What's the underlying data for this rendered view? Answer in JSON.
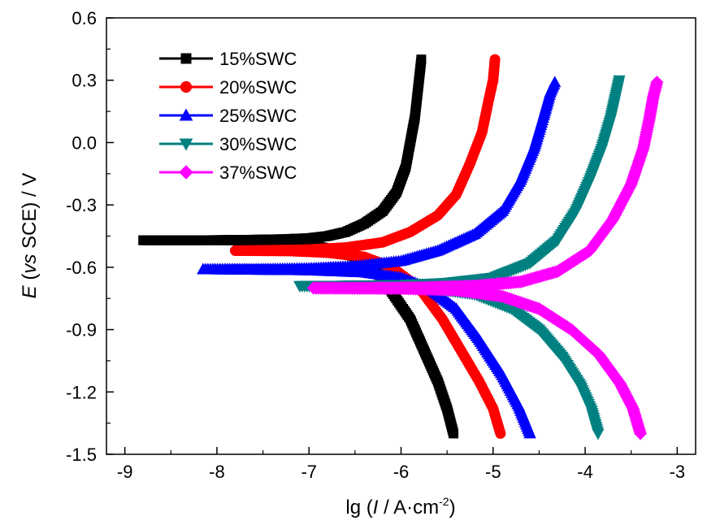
{
  "chart_data": {
    "type": "line",
    "title": "",
    "xlabel_parts": {
      "pre": "lg (",
      "italic": "I",
      "mid": " / A·cm",
      "sup": "-2",
      "post": ")"
    },
    "ylabel_parts": {
      "italic1": "E",
      "a": " (",
      "italic2": "vs",
      "b": " SCE) / V"
    },
    "xlim": [
      -9.2,
      -2.8
    ],
    "ylim": [
      -1.5,
      0.6
    ],
    "xticks": [
      -9,
      -8,
      -7,
      -6,
      -5,
      -4,
      -3
    ],
    "xtick_labels": [
      "-9",
      "-8",
      "-7",
      "-6",
      "-5",
      "-4",
      "-3"
    ],
    "yticks": [
      -1.5,
      -1.2,
      -0.9,
      -0.6,
      -0.3,
      0.0,
      0.3,
      0.6
    ],
    "ytick_labels": [
      "-1.5",
      "-1.2",
      "-0.9",
      "-0.6",
      "-0.3",
      "0.0",
      "0.3",
      "0.6"
    ],
    "grid": false,
    "legend_position": "top-left",
    "series": [
      {
        "name": "15%SWC",
        "color": "#000000",
        "marker": "square",
        "anodic": [
          [
            -8.8,
            -0.47
          ],
          [
            -8.2,
            -0.47
          ],
          [
            -7.7,
            -0.468
          ],
          [
            -7.3,
            -0.465
          ],
          [
            -7.0,
            -0.46
          ],
          [
            -6.8,
            -0.45
          ],
          [
            -6.6,
            -0.43
          ],
          [
            -6.4,
            -0.39
          ],
          [
            -6.2,
            -0.33
          ],
          [
            -6.05,
            -0.24
          ],
          [
            -5.95,
            -0.12
          ],
          [
            -5.9,
            0.0
          ],
          [
            -5.85,
            0.12
          ],
          [
            -5.82,
            0.24
          ],
          [
            -5.8,
            0.32
          ],
          [
            -5.78,
            0.4
          ]
        ],
        "cathodic": [
          [
            -8.8,
            -0.47
          ],
          [
            -8.0,
            -0.47
          ],
          [
            -7.5,
            -0.472
          ],
          [
            -7.0,
            -0.49
          ],
          [
            -6.6,
            -0.53
          ],
          [
            -6.3,
            -0.6
          ],
          [
            -6.1,
            -0.72
          ],
          [
            -5.9,
            -0.85
          ],
          [
            -5.75,
            -1.0
          ],
          [
            -5.6,
            -1.15
          ],
          [
            -5.5,
            -1.28
          ],
          [
            -5.43,
            -1.4
          ]
        ]
      },
      {
        "name": "20%SWC",
        "color": "#ff0000",
        "marker": "circle",
        "anodic": [
          [
            -7.8,
            -0.52
          ],
          [
            -7.4,
            -0.518
          ],
          [
            -7.0,
            -0.515
          ],
          [
            -6.6,
            -0.505
          ],
          [
            -6.2,
            -0.48
          ],
          [
            -5.9,
            -0.43
          ],
          [
            -5.6,
            -0.35
          ],
          [
            -5.4,
            -0.25
          ],
          [
            -5.25,
            -0.1
          ],
          [
            -5.12,
            0.05
          ],
          [
            -5.05,
            0.2
          ],
          [
            -5.0,
            0.3
          ],
          [
            -4.98,
            0.4
          ]
        ],
        "cathodic": [
          [
            -7.8,
            -0.52
          ],
          [
            -7.2,
            -0.522
          ],
          [
            -6.8,
            -0.53
          ],
          [
            -6.4,
            -0.55
          ],
          [
            -6.1,
            -0.6
          ],
          [
            -5.8,
            -0.7
          ],
          [
            -5.55,
            -0.85
          ],
          [
            -5.35,
            -1.0
          ],
          [
            -5.15,
            -1.15
          ],
          [
            -5.0,
            -1.28
          ],
          [
            -4.92,
            -1.4
          ]
        ]
      },
      {
        "name": "25%SWC",
        "color": "#0000ff",
        "marker": "triangle-up",
        "anodic": [
          [
            -8.15,
            -0.61
          ],
          [
            -7.6,
            -0.61
          ],
          [
            -7.0,
            -0.605
          ],
          [
            -6.5,
            -0.595
          ],
          [
            -6.0,
            -0.57
          ],
          [
            -5.6,
            -0.52
          ],
          [
            -5.2,
            -0.44
          ],
          [
            -4.9,
            -0.33
          ],
          [
            -4.7,
            -0.18
          ],
          [
            -4.55,
            -0.02
          ],
          [
            -4.45,
            0.13
          ],
          [
            -4.38,
            0.24
          ],
          [
            -4.33,
            0.29
          ]
        ],
        "cathodic": [
          [
            -8.15,
            -0.61
          ],
          [
            -7.0,
            -0.615
          ],
          [
            -6.4,
            -0.625
          ],
          [
            -6.0,
            -0.65
          ],
          [
            -5.7,
            -0.7
          ],
          [
            -5.4,
            -0.8
          ],
          [
            -5.15,
            -0.95
          ],
          [
            -4.9,
            -1.12
          ],
          [
            -4.72,
            -1.27
          ],
          [
            -4.6,
            -1.4
          ]
        ]
      },
      {
        "name": "30%SWC",
        "color": "#008080",
        "marker": "triangle-down",
        "anodic": [
          [
            -7.1,
            -0.69
          ],
          [
            -6.6,
            -0.688
          ],
          [
            -6.0,
            -0.685
          ],
          [
            -5.5,
            -0.675
          ],
          [
            -5.0,
            -0.65
          ],
          [
            -4.6,
            -0.58
          ],
          [
            -4.3,
            -0.47
          ],
          [
            -4.1,
            -0.33
          ],
          [
            -3.95,
            -0.18
          ],
          [
            -3.82,
            -0.03
          ],
          [
            -3.72,
            0.12
          ],
          [
            -3.67,
            0.22
          ],
          [
            -3.63,
            0.3
          ]
        ],
        "cathodic": [
          [
            -7.1,
            -0.69
          ],
          [
            -6.3,
            -0.692
          ],
          [
            -5.7,
            -0.7
          ],
          [
            -5.2,
            -0.73
          ],
          [
            -4.8,
            -0.8
          ],
          [
            -4.5,
            -0.9
          ],
          [
            -4.25,
            -1.03
          ],
          [
            -4.05,
            -1.17
          ],
          [
            -3.93,
            -1.29
          ],
          [
            -3.86,
            -1.4
          ]
        ]
      },
      {
        "name": "37%SWC",
        "color": "#ff00ff",
        "marker": "diamond",
        "anodic": [
          [
            -6.95,
            -0.7
          ],
          [
            -6.4,
            -0.7
          ],
          [
            -5.8,
            -0.698
          ],
          [
            -5.2,
            -0.69
          ],
          [
            -4.7,
            -0.67
          ],
          [
            -4.3,
            -0.62
          ],
          [
            -3.95,
            -0.52
          ],
          [
            -3.7,
            -0.37
          ],
          [
            -3.5,
            -0.2
          ],
          [
            -3.37,
            -0.03
          ],
          [
            -3.3,
            0.12
          ],
          [
            -3.26,
            0.22
          ],
          [
            -3.22,
            0.29
          ]
        ],
        "cathodic": [
          [
            -6.95,
            -0.7
          ],
          [
            -6.0,
            -0.702
          ],
          [
            -5.4,
            -0.71
          ],
          [
            -4.9,
            -0.74
          ],
          [
            -4.5,
            -0.8
          ],
          [
            -4.15,
            -0.9
          ],
          [
            -3.85,
            -1.02
          ],
          [
            -3.62,
            -1.16
          ],
          [
            -3.48,
            -1.28
          ],
          [
            -3.4,
            -1.4
          ]
        ]
      }
    ]
  }
}
